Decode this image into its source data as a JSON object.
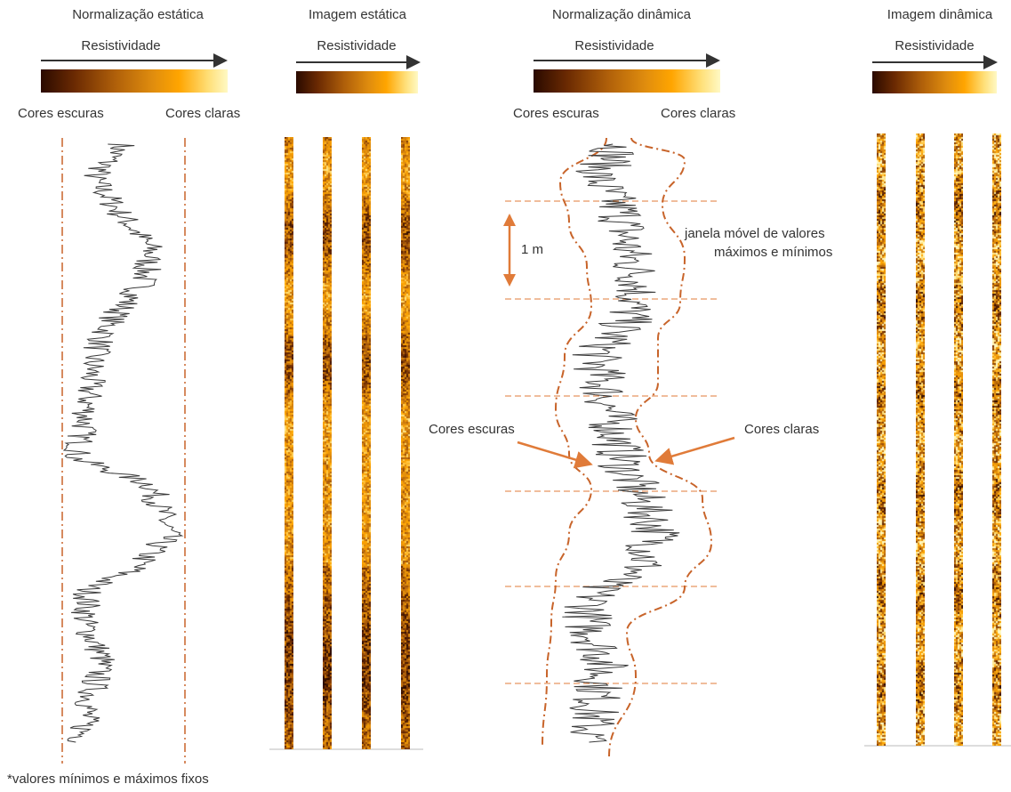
{
  "panels": {
    "static_norm": {
      "title": "Normalização estática",
      "axis": "Resistividade",
      "dark": "Cores escuras",
      "light": "Cores claras"
    },
    "static_image": {
      "title": "Imagem estática",
      "axis": "Resistividade"
    },
    "dynamic_norm": {
      "title": "Normalização dinâmica",
      "axis": "Resistividade",
      "dark": "Cores escuras",
      "light": "Cores claras",
      "scale": "1 m",
      "window_line1": "janela móvel de valores",
      "window_line2": "máximos e mínimos",
      "arrow_dark": "Cores escuras",
      "arrow_light": "Cores claras"
    },
    "dynamic_image": {
      "title": "Imagem dinâmica",
      "axis": "Resistividade"
    }
  },
  "footnote": "*valores mínimos e máximos fixos",
  "colors": {
    "guide": "#c8642a",
    "arrow": "#e07b39",
    "curve": "#3a3a3a",
    "axis_arrow": "#333333",
    "colorbar": [
      "#2a0a00",
      "#6b2a02",
      "#b0600a",
      "#e08d0e",
      "#ffa500",
      "#ffe07a",
      "#fff9c4"
    ]
  }
}
